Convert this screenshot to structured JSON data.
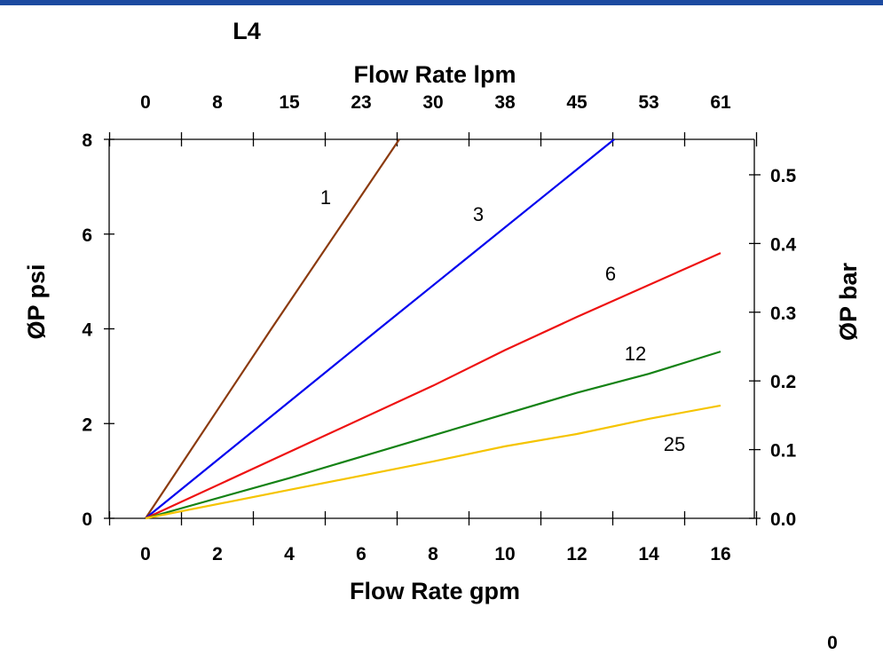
{
  "page_number": "0",
  "chart_data": {
    "type": "line",
    "title": "L4",
    "xlabel": "Flow Rate gpm",
    "x2label": "Flow Rate lpm",
    "ylabel": "ØP psi",
    "y2label": "ØP bar",
    "xlim": [
      -1,
      17
    ],
    "ylim": [
      0,
      8
    ],
    "y2lim": [
      0,
      0.5516
    ],
    "xticks": [
      "0",
      "2",
      "4",
      "6",
      "8",
      "10",
      "12",
      "14",
      "16"
    ],
    "x2ticks": [
      "0",
      "8",
      "15",
      "23",
      "30",
      "38",
      "45",
      "53",
      "61"
    ],
    "yticks": [
      "0",
      "2",
      "4",
      "6",
      "8"
    ],
    "y2ticks": [
      "0.0",
      "0.1",
      "0.2",
      "0.3",
      "0.4",
      "0.5"
    ],
    "grid": false,
    "series": [
      {
        "name": "1",
        "color": "#8b3a0e",
        "x": [
          0,
          3.5,
          7.06
        ],
        "y": [
          0,
          4,
          8
        ]
      },
      {
        "name": "3",
        "color": "#0000ee",
        "x": [
          0,
          6.5,
          13.04
        ],
        "y": [
          0,
          4,
          8
        ]
      },
      {
        "name": "6",
        "color": "#ee1111",
        "x": [
          0,
          4,
          8,
          10,
          12,
          16
        ],
        "y": [
          0,
          1.4,
          2.8,
          3.55,
          4.25,
          5.6
        ]
      },
      {
        "name": "12",
        "color": "#148214",
        "x": [
          0,
          4,
          8,
          12,
          14,
          16
        ],
        "y": [
          0,
          0.85,
          1.75,
          2.65,
          3.05,
          3.52
        ]
      },
      {
        "name": "25",
        "color": "#f5c400",
        "x": [
          0,
          4,
          8,
          10,
          12,
          14,
          16
        ],
        "y": [
          0,
          0.6,
          1.2,
          1.52,
          1.78,
          2.1,
          2.38
        ]
      }
    ]
  }
}
